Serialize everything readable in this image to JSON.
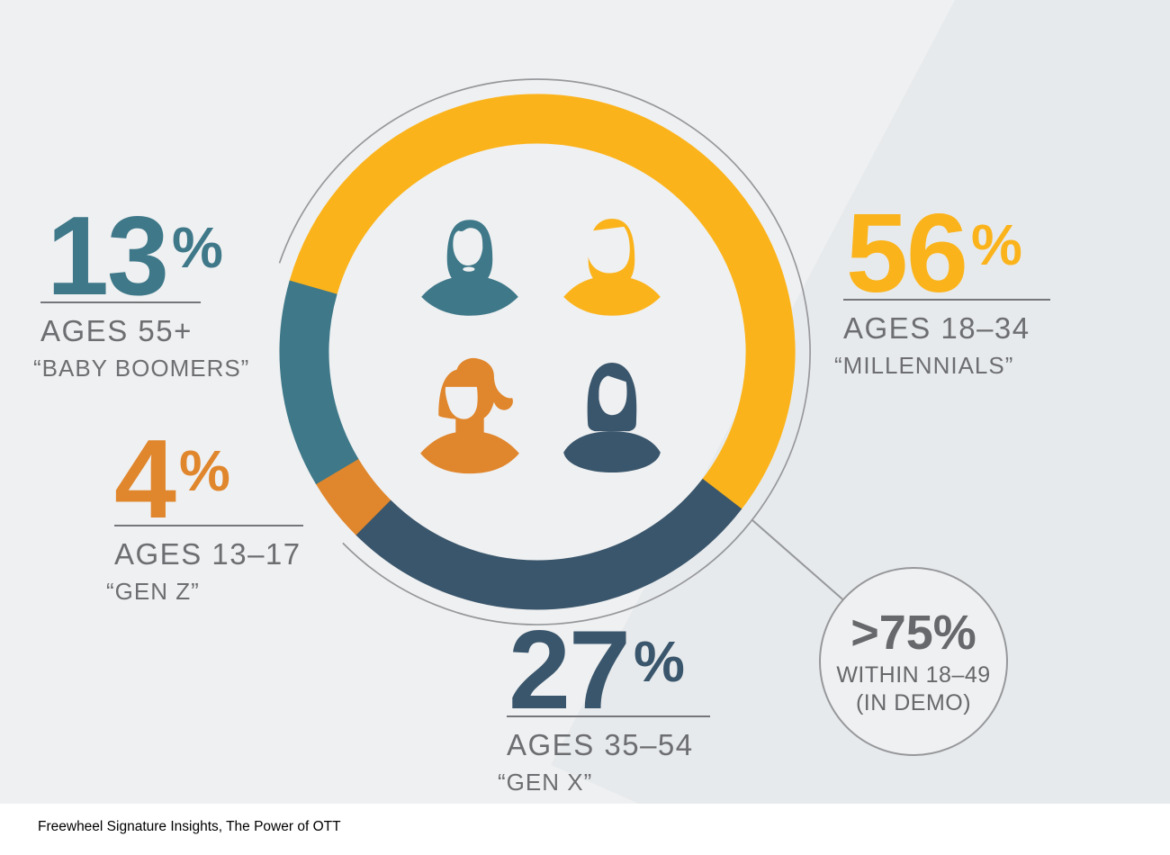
{
  "chart_data": {
    "type": "pie",
    "donut": true,
    "title": "",
    "percent_sign": "%",
    "start_angle_deg": 286,
    "total": 100,
    "legend_position": "labels-around-donut",
    "segments": [
      {
        "label": "AGES 18–34",
        "nickname": "“MILLENNIALS”",
        "value": 56,
        "color": "#FBB31B"
      },
      {
        "label": "AGES 35–54",
        "nickname": "“GEN X”",
        "value": 27,
        "color": "#3A566C"
      },
      {
        "label": "AGES 13–17",
        "nickname": "“GEN Z”",
        "value": 4,
        "color": "#E0862C"
      },
      {
        "label": "AGES 55+",
        "nickname": "“BABY BOOMERS”",
        "value": 13,
        "color": "#3E7889"
      }
    ],
    "callout": {
      "headline": ">75%",
      "line1": "WITHIN 18–49",
      "line2": "(IN DEMO)"
    }
  },
  "icons": [
    {
      "name": "man-beard-icon",
      "color": "#3E7889"
    },
    {
      "name": "young-person-icon",
      "color": "#FBB31B"
    },
    {
      "name": "woman-ponytail-icon",
      "color": "#E0862C"
    },
    {
      "name": "woman-long-hair-icon",
      "color": "#3A566C"
    }
  ],
  "colors": {
    "background": "#EFF0F1",
    "outline_gray": "#97989B",
    "underline_gray": "#75767A",
    "label_text": "#6D6E71",
    "callout_text": "#67686B"
  },
  "footer": {
    "source": "Freewheel Signature Insights, The Power of OTT"
  }
}
